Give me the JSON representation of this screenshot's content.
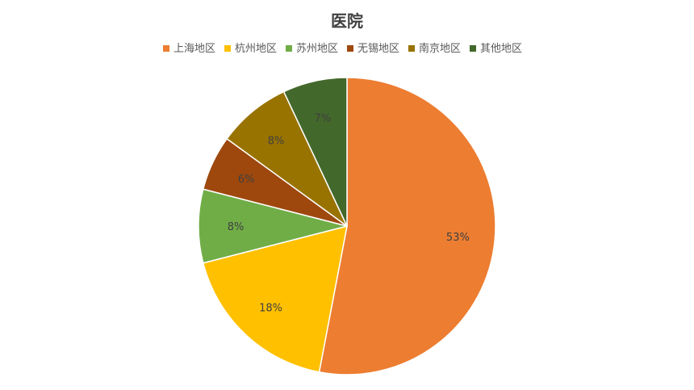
{
  "chart_data": {
    "type": "pie",
    "title": "医院",
    "legend_position": "top",
    "categories": [
      "上海地区",
      "杭州地区",
      "苏州地区",
      "无锡地区",
      "南京地区",
      "其他地区"
    ],
    "values": [
      53,
      18,
      8,
      6,
      8,
      7
    ],
    "labels": [
      "53%",
      "18%",
      "8%",
      "6%",
      "8%",
      "7%"
    ],
    "colors": [
      "#ED7D31",
      "#FFC000",
      "#70AD47",
      "#9E480E",
      "#997300",
      "#43682B"
    ]
  }
}
